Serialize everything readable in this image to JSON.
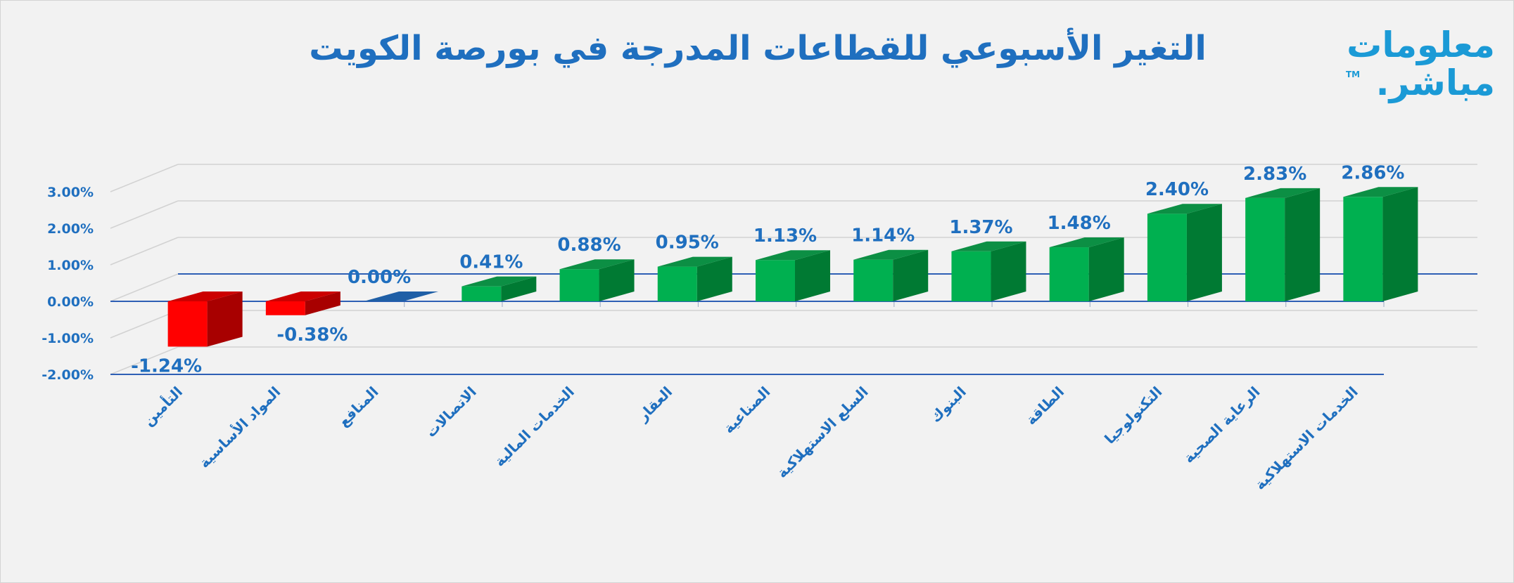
{
  "title": "التغير الأسبوعي للقطاعات المدرجة في بورصة الكويت",
  "logo": {
    "line1": "معلومات",
    "line2": "مباشر.",
    "tm": "TM"
  },
  "chart_data": {
    "type": "bar",
    "title": "التغير الأسبوعي للقطاعات المدرجة في بورصة الكويت",
    "xlabel": "",
    "ylabel": "",
    "ylim": [
      -2,
      3
    ],
    "yticks": [
      "3.00%",
      "2.00%",
      "1.00%",
      "0.00%",
      "-1.00%",
      "-2.00%"
    ],
    "grid": true,
    "categories": [
      "التأمين",
      "المواد الأساسية",
      "المنافع",
      "الاتصالات",
      "الخدمات المالية",
      "العقار",
      "الصناعية",
      "السلع الاستهلاكية",
      "البنوك",
      "الطاقة",
      "التكنولوجيا",
      "الرعاية الصحية",
      "الخدمات الاستهلاكية"
    ],
    "values": [
      -1.24,
      -0.38,
      0.0,
      0.41,
      0.88,
      0.95,
      1.13,
      1.14,
      1.37,
      1.48,
      2.4,
      2.83,
      2.86
    ],
    "data_labels": [
      "-1.24%",
      "-0.38%",
      "0.00%",
      "0.41%",
      "0.88%",
      "0.95%",
      "1.13%",
      "1.14%",
      "1.37%",
      "1.48%",
      "2.40%",
      "2.83%",
      "2.86%"
    ],
    "colors": {
      "positive_front": "#00b050",
      "positive_side": "#007a33",
      "positive_top": "#0c8f44",
      "negative_front": "#ff0000",
      "negative_side": "#a80000",
      "negative_top": "#cc0000",
      "zero_top": "#1f5fa6",
      "axis": "#2e5fb5",
      "grid": "#d2d2d2",
      "text": "#1f6fbf"
    }
  }
}
